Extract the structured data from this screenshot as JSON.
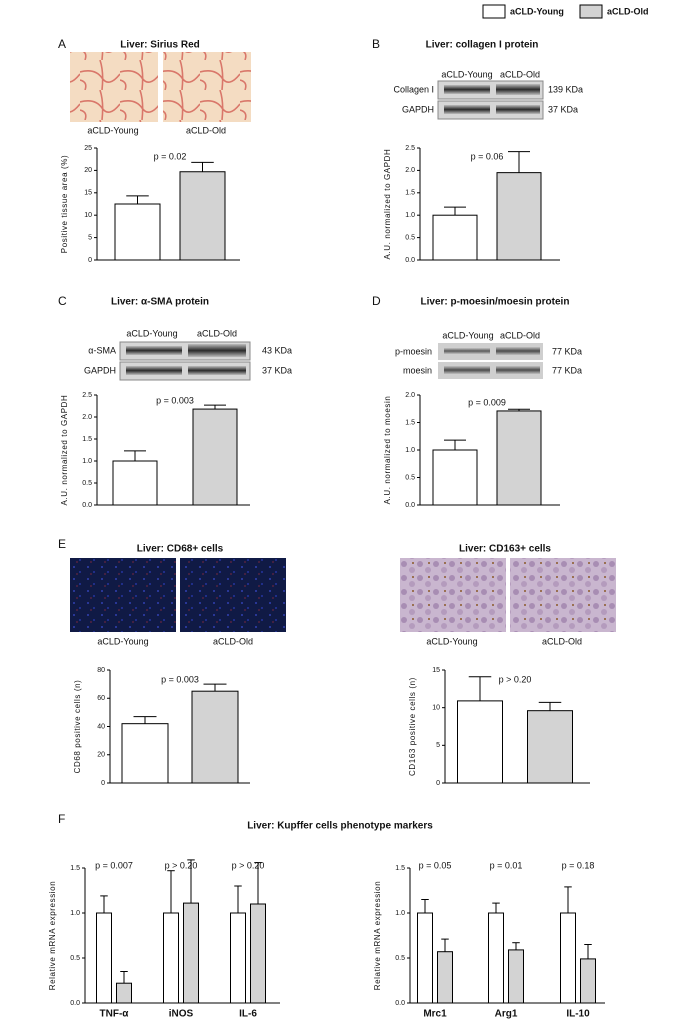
{
  "panel_labels": [
    "A",
    "B",
    "C",
    "D",
    "E",
    "F"
  ],
  "chart_data": [
    {
      "type": "bar",
      "title": "Liver: Sirius Red",
      "image_labels": [
        "aCLD-Young",
        "aCLD-Old"
      ],
      "y_label": "Positive tissue area (%)",
      "categories": [
        null
      ],
      "annotations": [
        "p = 0.02"
      ],
      "series": [
        {
          "name": "aCLD-Young",
          "color": "#ffffff",
          "values": [
            12.5
          ],
          "errors": [
            1.8
          ]
        },
        {
          "name": "aCLD-Old",
          "color": "#d3d3d3",
          "values": [
            19.7
          ],
          "errors": [
            2.1
          ]
        }
      ],
      "ylim": [
        0,
        25
      ],
      "yticks": [
        0,
        5,
        10,
        15,
        20,
        25
      ]
    },
    {
      "type": "bar",
      "title": "Liver: collagen I protein",
      "blot": {
        "lanes": [
          "aCLD-Young",
          "aCLD-Old"
        ],
        "rows": [
          {
            "label": "Collagen I",
            "size": "139 KDa"
          },
          {
            "label": "GAPDH",
            "size": "37 KDa"
          }
        ]
      },
      "y_label": "A.U. normalized to GAPDH",
      "categories": [
        null
      ],
      "annotations": [
        "p = 0.06"
      ],
      "series": [
        {
          "name": "aCLD-Young",
          "color": "#ffffff",
          "values": [
            1.0
          ],
          "errors": [
            0.18
          ]
        },
        {
          "name": "aCLD-Old",
          "color": "#d3d3d3",
          "values": [
            1.95
          ],
          "errors": [
            0.47
          ]
        }
      ],
      "ylim": [
        0,
        2.5
      ],
      "yticks": [
        {
          "value": 0,
          "label": "0.0"
        },
        0.5,
        {
          "value": 1,
          "label": "1.0"
        },
        1.5,
        {
          "value": 2,
          "label": "2.0"
        },
        2.5
      ]
    },
    {
      "type": "bar",
      "title": "Liver: α-SMA protein",
      "blot": {
        "lanes": [
          "aCLD-Young",
          "aCLD-Old"
        ],
        "rows": [
          {
            "label": "α-SMA",
            "size": "43 KDa"
          },
          {
            "label": "GAPDH",
            "size": "37 KDa"
          }
        ]
      },
      "y_label": "A.U. normalized to GAPDH",
      "categories": [
        null
      ],
      "annotations": [
        "p = 0.003"
      ],
      "series": [
        {
          "name": "aCLD-Young",
          "color": "#ffffff",
          "values": [
            1.0
          ],
          "errors": [
            0.23
          ]
        },
        {
          "name": "aCLD-Old",
          "color": "#d3d3d3",
          "values": [
            2.18
          ],
          "errors": [
            0.09
          ]
        }
      ],
      "ylim": [
        0,
        2.5
      ],
      "yticks": [
        {
          "value": 0,
          "label": "0.0"
        },
        0.5,
        {
          "value": 1,
          "label": "1.0"
        },
        1.5,
        {
          "value": 2,
          "label": "2.0"
        },
        2.5
      ]
    },
    {
      "type": "bar",
      "title": "Liver: p-moesin/moesin protein",
      "blot": {
        "lanes": [
          "aCLD-Young",
          "aCLD-Old"
        ],
        "rows": [
          {
            "label": "p-moesin",
            "size": "77 KDa"
          },
          {
            "label": "moesin",
            "size": "77 KDa"
          }
        ]
      },
      "y_label": "A.U. normalized to moesin",
      "categories": [
        null
      ],
      "annotations": [
        "p = 0.009"
      ],
      "series": [
        {
          "name": "aCLD-Young",
          "color": "#ffffff",
          "values": [
            1.0
          ],
          "errors": [
            0.18
          ]
        },
        {
          "name": "aCLD-Old",
          "color": "#d3d3d3",
          "values": [
            1.71
          ],
          "errors": [
            0.03
          ]
        }
      ],
      "ylim": [
        0,
        2
      ],
      "yticks": [
        {
          "value": 0,
          "label": "0.0"
        },
        0.5,
        {
          "value": 1,
          "label": "1.0"
        },
        1.5,
        {
          "value": 2,
          "label": "2.0"
        }
      ]
    },
    {
      "type": "bar",
      "title": "Liver: CD68+ cells",
      "image_labels": [
        "aCLD-Young",
        "aCLD-Old"
      ],
      "y_label": "CD68 positive cells (n)",
      "categories": [
        null
      ],
      "annotations": [
        "p = 0.003"
      ],
      "series": [
        {
          "name": "aCLD-Young",
          "color": "#ffffff",
          "values": [
            42
          ],
          "errors": [
            5
          ]
        },
        {
          "name": "aCLD-Old",
          "color": "#d3d3d3",
          "values": [
            65
          ],
          "errors": [
            5
          ]
        }
      ],
      "ylim": [
        0,
        80
      ],
      "yticks": [
        0,
        20,
        40,
        60,
        80
      ]
    },
    {
      "type": "bar",
      "title": "Liver: CD163+ cells",
      "image_labels": [
        "aCLD-Young",
        "aCLD-Old"
      ],
      "y_label": "CD163 positive cells (n)",
      "categories": [
        null
      ],
      "annotations": [
        "p > 0.20"
      ],
      "series": [
        {
          "name": "aCLD-Young",
          "color": "#ffffff",
          "values": [
            10.9
          ],
          "errors": [
            3.2
          ]
        },
        {
          "name": "aCLD-Old",
          "color": "#d3d3d3",
          "values": [
            9.6
          ],
          "errors": [
            1.1
          ]
        }
      ],
      "ylim": [
        0,
        15
      ],
      "yticks": [
        0,
        5,
        10,
        15
      ]
    },
    {
      "type": "bar",
      "title": "Liver: Kupffer cells phenotype markers",
      "y_label": "Relative mRNA expression",
      "categories": [
        "TNF-α",
        "iNOS",
        "IL-6"
      ],
      "annotations": [
        "p = 0.007",
        "p > 0.20",
        "p > 0.20"
      ],
      "series": [
        {
          "name": "aCLD-Young",
          "color": "#ffffff",
          "values": [
            1.0,
            1.0,
            1.0
          ],
          "errors": [
            0.19,
            0.47,
            0.3
          ]
        },
        {
          "name": "aCLD-Old",
          "color": "#d3d3d3",
          "values": [
            0.22,
            1.11,
            1.1
          ],
          "errors": [
            0.13,
            0.48,
            0.46
          ]
        }
      ],
      "ylim": [
        0,
        1.5
      ],
      "yticks": [
        {
          "value": 0,
          "label": "0.0"
        },
        0.5,
        {
          "value": 1,
          "label": "1.0"
        },
        1.5
      ]
    },
    {
      "type": "bar",
      "y_label": "Relative mRNA expression",
      "categories": [
        "Mrc1",
        "Arg1",
        "IL-10"
      ],
      "annotations": [
        "p = 0.05",
        "p = 0.01",
        "p = 0.18"
      ],
      "series": [
        {
          "name": "aCLD-Young",
          "color": "#ffffff",
          "values": [
            1.0,
            1.0,
            1.0
          ],
          "errors": [
            0.15,
            0.11,
            0.29
          ]
        },
        {
          "name": "aCLD-Old",
          "color": "#d3d3d3",
          "values": [
            0.57,
            0.59,
            0.49
          ],
          "errors": [
            0.14,
            0.08,
            0.16
          ]
        }
      ],
      "ylim": [
        0,
        1.5
      ],
      "yticks": [
        {
          "value": 0,
          "label": "0.0"
        },
        0.5,
        {
          "value": 1,
          "label": "1.0"
        },
        1.5
      ]
    }
  ]
}
